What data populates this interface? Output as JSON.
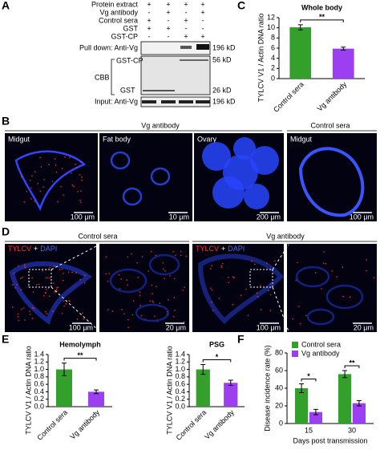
{
  "letters": [
    "A",
    "B",
    "C",
    "D",
    "E",
    "F"
  ],
  "panels": {
    "A": {
      "rows": [
        {
          "name": "Protein extract",
          "signs": [
            "+",
            "+",
            "+",
            "+"
          ]
        },
        {
          "name": "Vg antibody",
          "signs": [
            "-",
            "+",
            "-",
            "+"
          ]
        },
        {
          "name": "Control sera",
          "signs": [
            "+",
            "-",
            "+",
            "-"
          ]
        },
        {
          "name": "GST",
          "signs": [
            "+",
            "+",
            "-",
            "-"
          ]
        },
        {
          "name": "GST-CP",
          "signs": [
            "-",
            "-",
            "+",
            "+"
          ]
        }
      ],
      "pull_down": "Pull down: Anti-Vg",
      "cbb": "CBB",
      "gst_cp": "GST-CP",
      "gst": "GST",
      "input": "Input: Anti-Vg",
      "kd": [
        "196 kD",
        "56 kD",
        "26 kD",
        "196 kD"
      ]
    },
    "B": {
      "groups": [
        "Vg antibody",
        "Control sera"
      ],
      "tissues": [
        "Midgut",
        "Fat body",
        "Ovary",
        "Midgut"
      ],
      "scales": [
        "100 μm",
        "10 μm",
        "200 μm",
        "100 μm"
      ]
    },
    "D": {
      "groups": [
        "Control sera",
        "Vg antibody"
      ],
      "stain": [
        "TYLCV",
        "+",
        "DAPI"
      ],
      "scales": [
        "100 μm",
        "20 μm",
        "100 μm",
        "20 μm"
      ]
    }
  },
  "chart_data": [
    {
      "type": "bar",
      "title": "Whole body",
      "y_label": "TYLCV V1 / Actin DNA ratio",
      "categories": [
        "Control sera",
        "Vg antibody"
      ],
      "values": [
        10.1,
        5.9
      ],
      "errors": [
        0.5,
        0.3
      ],
      "colors": [
        "#33a02c",
        "#9b3ff0"
      ],
      "ylim": [
        0,
        12
      ],
      "yticks": [
        0,
        2,
        4,
        6,
        8,
        10,
        12
      ],
      "annotations": [
        "**"
      ]
    },
    {
      "type": "bar",
      "title": "Hemolymph",
      "y_label": "TYLCV V1 / Actin DNA ratio",
      "categories": [
        "Control sera",
        "Vg antibody"
      ],
      "values": [
        1.0,
        0.4
      ],
      "errors": [
        0.17,
        0.05
      ],
      "colors": [
        "#33a02c",
        "#9b3ff0"
      ],
      "ylim": [
        0,
        1.4
      ],
      "yticks": [
        {
          "value": 0,
          "label": "0.0"
        },
        0.2,
        0.4,
        0.6,
        0.8,
        {
          "value": 1,
          "label": "1.0"
        },
        1.2,
        1.4
      ],
      "annotations": [
        "**"
      ]
    },
    {
      "type": "bar",
      "title": "PSG",
      "y_label": "TYLCV V1 / Actin DNA ratio",
      "categories": [
        "Control sera",
        "Vg antibody"
      ],
      "values": [
        1.0,
        0.64
      ],
      "errors": [
        0.13,
        0.07
      ],
      "colors": [
        "#33a02c",
        "#9b3ff0"
      ],
      "ylim": [
        0,
        1.4
      ],
      "yticks": [
        {
          "value": 0,
          "label": "0.0"
        },
        0.2,
        0.4,
        0.6,
        0.8,
        {
          "value": 1,
          "label": "1.0"
        },
        1.2,
        1.4
      ],
      "annotations": [
        "*"
      ]
    },
    {
      "type": "grouped_bar",
      "y_label": "Disease incidence rate (%)",
      "x_label": "Days post transmission",
      "categories": [
        "15",
        "30"
      ],
      "series": [
        {
          "name": "Control sera",
          "color": "#33a02c",
          "values": [
            40,
            56
          ],
          "errors": [
            5,
            4
          ]
        },
        {
          "name": "Vg antibody",
          "color": "#9b3ff0",
          "values": [
            13,
            23
          ],
          "errors": [
            3,
            3
          ]
        }
      ],
      "ylim": [
        0,
        80
      ],
      "yticks": [
        0,
        20,
        40,
        60,
        80
      ],
      "legend": "top-left",
      "annotations": [
        "*",
        "**"
      ]
    }
  ]
}
